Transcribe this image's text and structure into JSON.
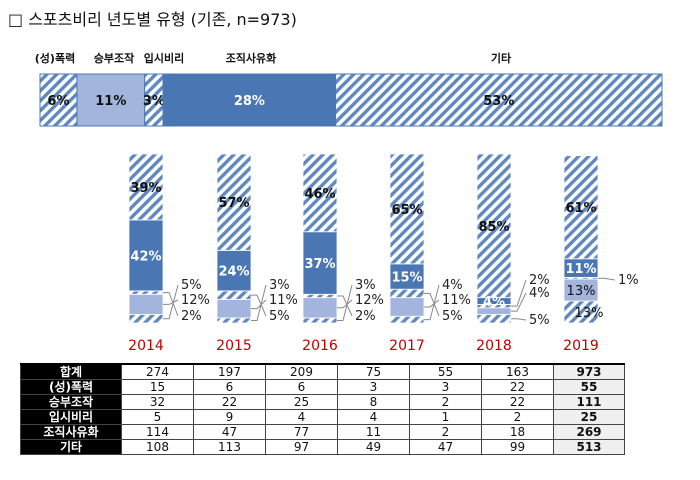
{
  "title": "□ 스포츠비리 년도별 유형 (기존, n=973)",
  "colors": {
    "pokryeok": "#6f95c7",
    "seungbu": "#a3b5dc",
    "ipsi": "#6f95c7",
    "jojik": "#4a77b4",
    "gita": "#6f95c7",
    "label_dark": "#111111",
    "label_light": "#ffffff",
    "year_label": "#c00000",
    "leader": "#888888"
  },
  "chart_data": [
    {
      "type": "bar",
      "subtype": "stacked-horizontal-100",
      "title": "",
      "categories": [
        "(성)폭력",
        "승부조작",
        "입시비리",
        "조직사유화",
        "기타"
      ],
      "values": [
        6,
        11,
        3,
        28,
        53
      ],
      "labels": [
        "6%",
        "11%",
        "3%",
        "28%",
        "53%"
      ],
      "patterns": [
        "hatch",
        "solid",
        "hatch",
        "solid",
        "hatch"
      ],
      "xlim": [
        0,
        100
      ]
    },
    {
      "type": "bar",
      "subtype": "stacked-vertical-100",
      "categories": [
        "2014",
        "2015",
        "2016",
        "2017",
        "2018",
        "2019"
      ],
      "series": [
        {
          "name": "(성)폭력",
          "values": [
            5,
            3,
            3,
            4,
            5,
            13
          ],
          "labels": [
            "5%",
            "3%",
            "3%",
            "4%",
            "5%",
            "13%"
          ]
        },
        {
          "name": "승부조작",
          "values": [
            12,
            11,
            12,
            11,
            4,
            13
          ],
          "labels": [
            "12%",
            "11%",
            "12%",
            "11%",
            "4%",
            "13%"
          ]
        },
        {
          "name": "입시비리",
          "values": [
            2,
            5,
            2,
            5,
            2,
            1
          ],
          "labels": [
            "2%",
            "5%",
            "2%",
            "5%",
            "2%",
            "1%"
          ]
        },
        {
          "name": "조직사유화",
          "values": [
            42,
            24,
            37,
            15,
            4,
            11
          ],
          "labels": [
            "42%",
            "24%",
            "37%",
            "15%",
            "4%",
            "11%"
          ]
        },
        {
          "name": "기타",
          "values": [
            39,
            57,
            46,
            65,
            85,
            61
          ],
          "labels": [
            "39%",
            "57%",
            "46%",
            "65%",
            "85%",
            "61%"
          ]
        }
      ],
      "ylim": [
        0,
        100
      ]
    }
  ],
  "table": {
    "columns": [
      "2014",
      "2015",
      "2016",
      "2017",
      "2018",
      "2019"
    ],
    "rows": [
      {
        "label": "합계",
        "values": [
          "274",
          "197",
          "209",
          "75",
          "55",
          "163"
        ],
        "total": "973"
      },
      {
        "label": "(성)폭력",
        "values": [
          "15",
          "6",
          "6",
          "3",
          "3",
          "22"
        ],
        "total": "55"
      },
      {
        "label": "승부조작",
        "values": [
          "32",
          "22",
          "25",
          "8",
          "2",
          "22"
        ],
        "total": "111"
      },
      {
        "label": "입시비리",
        "values": [
          "5",
          "9",
          "4",
          "4",
          "1",
          "2"
        ],
        "total": "25"
      },
      {
        "label": "조직사유화",
        "values": [
          "114",
          "47",
          "77",
          "11",
          "2",
          "18"
        ],
        "total": "269"
      },
      {
        "label": "기타",
        "values": [
          "108",
          "113",
          "97",
          "49",
          "47",
          "99"
        ],
        "total": "513"
      }
    ]
  }
}
